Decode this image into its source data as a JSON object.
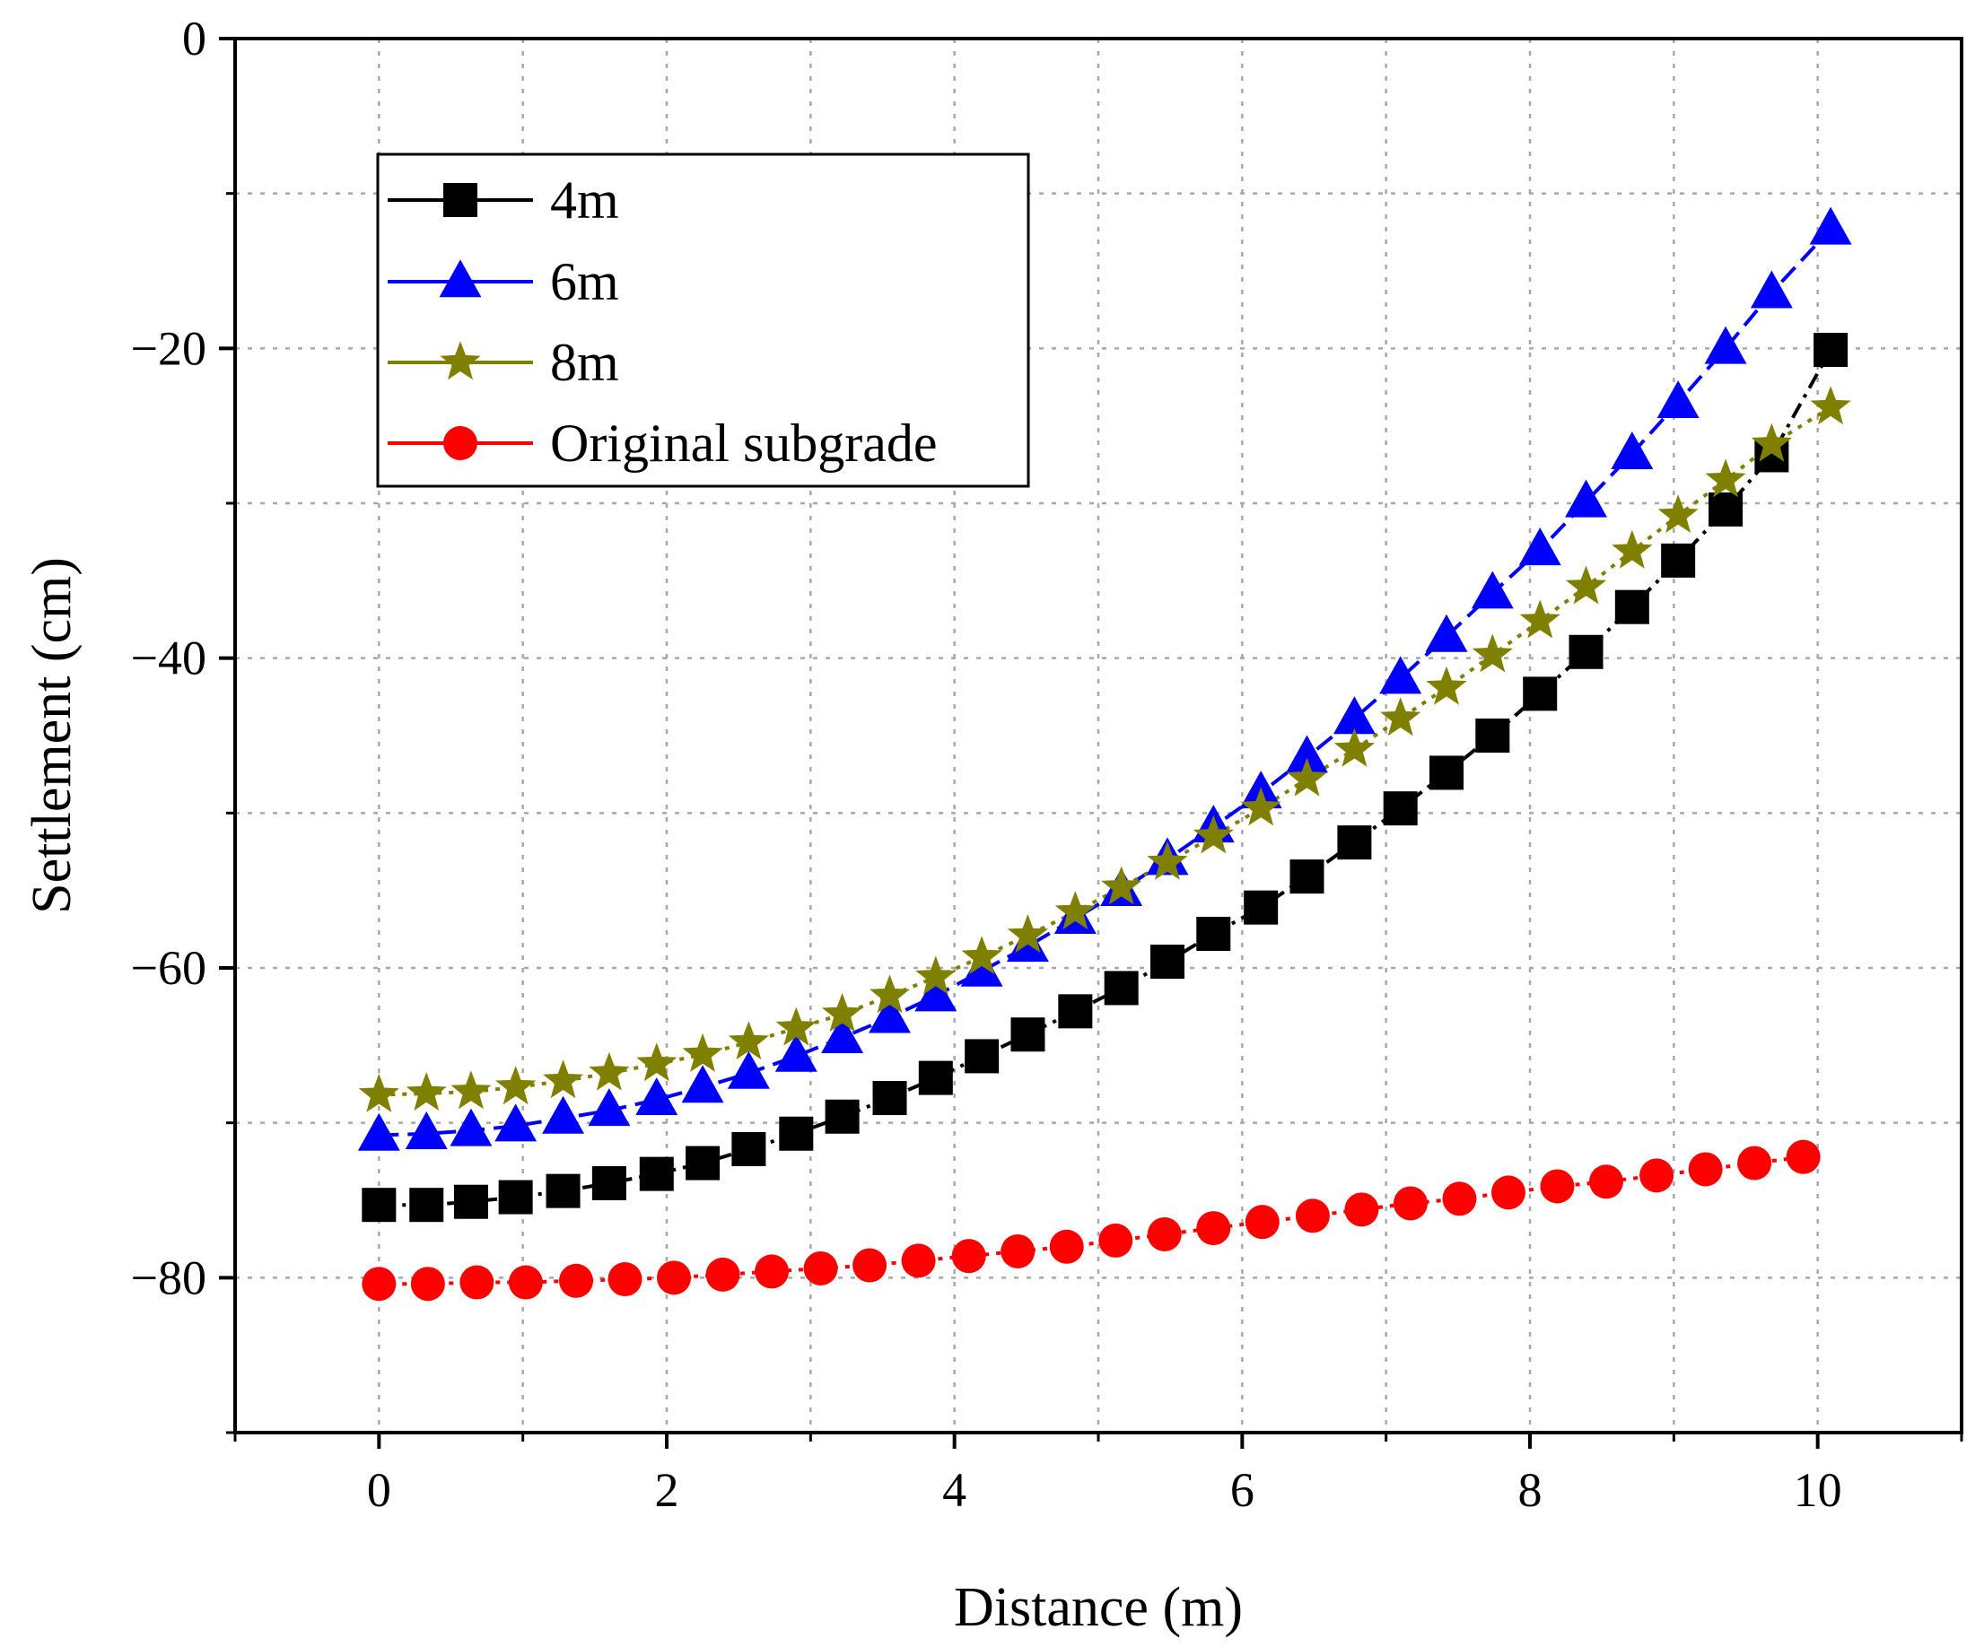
{
  "chart_data": {
    "type": "line",
    "title": "",
    "xlabel": "Distance (m)",
    "ylabel": "Settlement (cm)",
    "xlim": [
      -1.0,
      11.0
    ],
    "ylim": [
      -90,
      0
    ],
    "x_ticks": [
      0,
      2,
      4,
      6,
      8,
      10
    ],
    "x_tick_labels": [
      "0",
      "2",
      "4",
      "6",
      "8",
      "10"
    ],
    "y_ticks": [
      0,
      -20,
      -40,
      -60,
      -80
    ],
    "y_tick_labels": [
      "0",
      "−20",
      "−40",
      "−60",
      "−80"
    ],
    "grid": true,
    "legend_position": "top-left",
    "series": [
      {
        "name": "4m",
        "color": "#000000",
        "marker": "square",
        "line_style": "dash-dot",
        "x": [
          0.0,
          0.33,
          0.64,
          0.95,
          1.28,
          1.6,
          1.93,
          2.25,
          2.57,
          2.9,
          3.22,
          3.55,
          3.87,
          4.19,
          4.51,
          4.84,
          5.16,
          5.48,
          5.8,
          6.13,
          6.45,
          6.78,
          7.1,
          7.42,
          7.74,
          8.07,
          8.39,
          8.71,
          9.03,
          9.36,
          9.68,
          10.09
        ],
        "values": [
          -75.3,
          -75.3,
          -75.1,
          -74.8,
          -74.4,
          -73.9,
          -73.3,
          -72.6,
          -71.7,
          -70.7,
          -69.6,
          -68.4,
          -67.1,
          -65.7,
          -64.3,
          -62.8,
          -61.3,
          -59.6,
          -57.8,
          -56.1,
          -54.1,
          -51.9,
          -49.7,
          -47.4,
          -45.0,
          -42.3,
          -39.6,
          -36.7,
          -33.7,
          -30.4,
          -26.9,
          -20.1
        ]
      },
      {
        "name": "6m",
        "color": "#0000ff",
        "marker": "triangle",
        "line_style": "dashed",
        "x": [
          0.0,
          0.33,
          0.64,
          0.95,
          1.28,
          1.6,
          1.93,
          2.25,
          2.57,
          2.9,
          3.22,
          3.55,
          3.87,
          4.19,
          4.51,
          4.84,
          5.16,
          5.48,
          5.8,
          6.13,
          6.45,
          6.78,
          7.1,
          7.42,
          7.74,
          8.07,
          8.39,
          8.71,
          9.03,
          9.36,
          9.68,
          10.09
        ],
        "values": [
          -70.8,
          -70.7,
          -70.5,
          -70.2,
          -69.7,
          -69.2,
          -68.5,
          -67.7,
          -66.8,
          -65.7,
          -64.5,
          -63.2,
          -61.8,
          -60.2,
          -58.6,
          -56.8,
          -55.0,
          -53.0,
          -50.9,
          -48.7,
          -46.4,
          -43.9,
          -41.3,
          -38.6,
          -35.8,
          -33.0,
          -29.9,
          -26.8,
          -23.5,
          -20.0,
          -16.4,
          -12.3
        ]
      },
      {
        "name": "8m",
        "color": "#808000",
        "marker": "star",
        "line_style": "dotted",
        "x": [
          0.0,
          0.33,
          0.64,
          0.95,
          1.28,
          1.6,
          1.93,
          2.25,
          2.57,
          2.9,
          3.22,
          3.55,
          3.87,
          4.19,
          4.51,
          4.84,
          5.16,
          5.48,
          5.8,
          6.13,
          6.45,
          6.78,
          7.1,
          7.42,
          7.74,
          8.07,
          8.39,
          8.71,
          9.03,
          9.36,
          9.68,
          10.09
        ],
        "values": [
          -68.2,
          -68.1,
          -68.0,
          -67.7,
          -67.3,
          -66.8,
          -66.2,
          -65.6,
          -64.8,
          -63.9,
          -63.0,
          -61.8,
          -60.6,
          -59.3,
          -57.9,
          -56.4,
          -54.8,
          -53.2,
          -51.5,
          -49.7,
          -47.8,
          -45.9,
          -43.9,
          -41.9,
          -39.8,
          -37.6,
          -35.4,
          -33.1,
          -30.8,
          -28.5,
          -26.2,
          -23.8
        ]
      },
      {
        "name": "Original subgrade",
        "color": "#ff0000",
        "marker": "circle",
        "line_style": "dotted",
        "x": [
          0.0,
          0.34,
          0.68,
          1.02,
          1.37,
          1.71,
          2.05,
          2.39,
          2.73,
          3.07,
          3.41,
          3.75,
          4.1,
          4.44,
          4.78,
          5.12,
          5.46,
          5.8,
          6.14,
          6.49,
          6.83,
          7.17,
          7.51,
          7.85,
          8.19,
          8.53,
          8.88,
          9.22,
          9.56,
          9.9
        ],
        "values": [
          -80.4,
          -80.4,
          -80.3,
          -80.3,
          -80.2,
          -80.1,
          -80.0,
          -79.8,
          -79.6,
          -79.4,
          -79.2,
          -78.9,
          -78.6,
          -78.3,
          -78.0,
          -77.6,
          -77.2,
          -76.8,
          -76.4,
          -76.0,
          -75.6,
          -75.2,
          -74.9,
          -74.5,
          -74.1,
          -73.8,
          -73.4,
          -73.0,
          -72.6,
          -72.2
        ]
      }
    ]
  }
}
